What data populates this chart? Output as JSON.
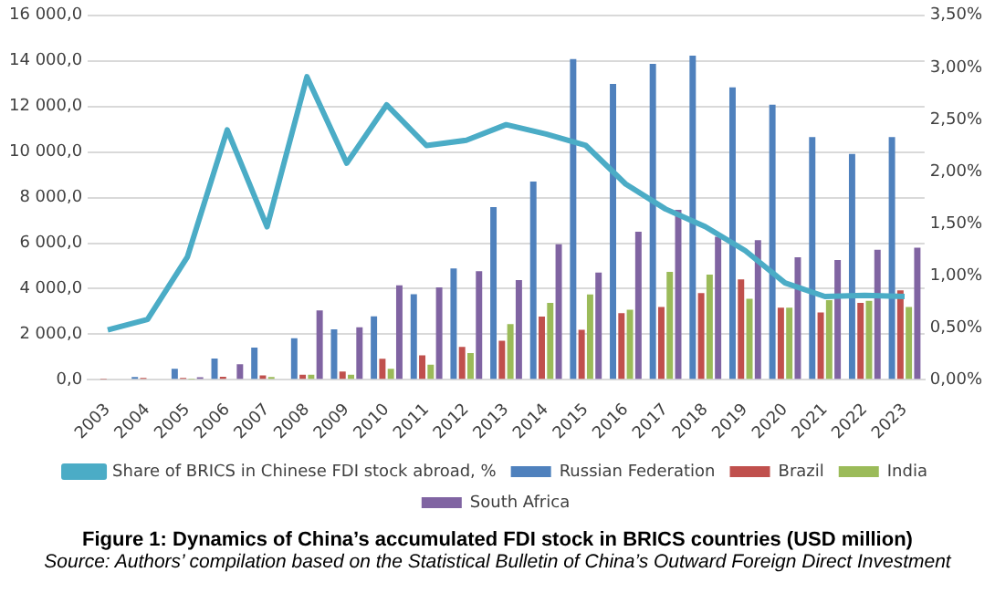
{
  "chart_data": {
    "type": "bar",
    "title": "Figure 1: Dynamics of China’s accumulated FDI stock in BRICS countries (USD million)",
    "annotations": [
      "Source: Authors’ compilation based on the Statistical Bulletin of China’s Outward Foreign Direct Investment"
    ],
    "categories": [
      "2003",
      "2004",
      "2005",
      "2006",
      "2007",
      "2008",
      "2009",
      "2010",
      "2011",
      "2012",
      "2013",
      "2014",
      "2015",
      "2016",
      "2017",
      "2018",
      "2019",
      "2020",
      "2021",
      "2022",
      "2023"
    ],
    "series": [
      {
        "name": "Russian Federation",
        "color": "#4f81bd",
        "values": [
          null,
          120,
          480,
          930,
          1420,
          1830,
          2220,
          2790,
          3760,
          4890,
          7580,
          8700,
          14080,
          12990,
          13870,
          14230,
          12840,
          12080,
          10660,
          9910,
          10660
        ]
      },
      {
        "name": "Brazil",
        "color": "#c0504d",
        "values": [
          20,
          80,
          80,
          130,
          190,
          220,
          360,
          920,
          1070,
          1450,
          1720,
          2780,
          2200,
          2930,
          3200,
          3810,
          4410,
          3170,
          2960,
          3380,
          3930
        ]
      },
      {
        "name": "India",
        "color": "#9bbb59",
        "values": [
          0,
          0,
          20,
          null,
          120,
          220,
          220,
          480,
          660,
          1170,
          2450,
          3380,
          3750,
          3080,
          4740,
          4620,
          3560,
          3170,
          3500,
          3470,
          3200
        ]
      },
      {
        "name": "South Africa",
        "color": "#8064a2",
        "values": [
          null,
          null,
          110,
          680,
          null,
          3050,
          2310,
          4150,
          4060,
          4770,
          4380,
          5950,
          4710,
          6500,
          7460,
          6280,
          6130,
          5380,
          5260,
          5710,
          5800
        ]
      },
      {
        "name": "Share of BRICS in Chinese FDI stock abroad, %",
        "type": "line",
        "axis": "y2",
        "color": "#4bacc6",
        "values": [
          0.48,
          0.58,
          1.18,
          2.4,
          1.47,
          2.91,
          2.08,
          2.64,
          2.25,
          2.3,
          2.45,
          2.36,
          2.25,
          1.88,
          1.64,
          1.47,
          1.24,
          0.93,
          0.8,
          0.81,
          0.8
        ]
      }
    ],
    "ylim": [
      0,
      16000
    ],
    "yticks": [
      {
        "value": 0,
        "label": "0,0"
      },
      {
        "value": 2000,
        "label": "2 000,0"
      },
      {
        "value": 4000,
        "label": "4 000,0"
      },
      {
        "value": 6000,
        "label": "6 000,0"
      },
      {
        "value": 8000,
        "label": "8 000,0"
      },
      {
        "value": 10000,
        "label": "10 000,0"
      },
      {
        "value": 12000,
        "label": "12 000,0"
      },
      {
        "value": 14000,
        "label": "14 000,0"
      },
      {
        "value": 16000,
        "label": "16 000,0"
      }
    ],
    "y2lim": [
      0,
      3.5
    ],
    "y2ticks": [
      {
        "value": 0,
        "label": "0,00%"
      },
      {
        "value": 0.5,
        "label": "0,50%"
      },
      {
        "value": 1,
        "label": "1,00%"
      },
      {
        "value": 1.5,
        "label": "1,50%"
      },
      {
        "value": 2,
        "label": "2,00%"
      },
      {
        "value": 2.5,
        "label": "2,50%"
      },
      {
        "value": 3,
        "label": "3,00%"
      },
      {
        "value": 3.5,
        "label": "3,50%"
      }
    ],
    "grid": "y",
    "legend": "bottom",
    "marker": "none"
  }
}
